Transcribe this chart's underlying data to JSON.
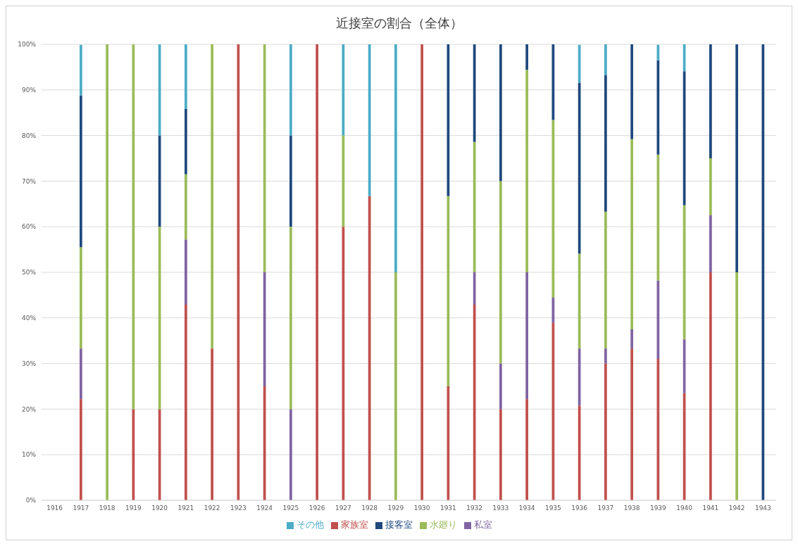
{
  "chart_data": {
    "type": "bar",
    "title": "近接室の割合（全体）",
    "stacked": true,
    "categories": [
      "1916",
      "1917",
      "1918",
      "1919",
      "1920",
      "1921",
      "1922",
      "1923",
      "1924",
      "1925",
      "1926",
      "1927",
      "1928",
      "1929",
      "1930",
      "1931",
      "1932",
      "1933",
      "1934",
      "1935",
      "1936",
      "1937",
      "1938",
      "1939",
      "1940",
      "1941",
      "1942",
      "1943"
    ],
    "series": [
      {
        "name": "家族室",
        "color": "#c0504d",
        "values": [
          null,
          22.2,
          null,
          20,
          20,
          42.9,
          33.3,
          100,
          25,
          null,
          100,
          60,
          66.7,
          null,
          100,
          25,
          42.9,
          20,
          22.2,
          38.9,
          20.8,
          30,
          33.3,
          31.0,
          23.5,
          50,
          null,
          null
        ]
      },
      {
        "name": "私室",
        "color": "#8064a2",
        "values": [
          null,
          11.1,
          null,
          null,
          null,
          14.3,
          null,
          null,
          25,
          20,
          null,
          null,
          null,
          null,
          null,
          null,
          7.1,
          10,
          27.8,
          5.6,
          12.5,
          3.3,
          4.2,
          17.2,
          11.8,
          12.5,
          null,
          null
        ]
      },
      {
        "name": "水廻り",
        "color": "#9bbb59",
        "values": [
          null,
          22.2,
          100,
          80,
          40,
          14.3,
          66.7,
          null,
          50,
          40,
          null,
          20,
          null,
          50,
          null,
          41.7,
          28.6,
          40,
          44.4,
          38.9,
          20.8,
          30,
          41.7,
          27.6,
          29.4,
          12.5,
          50,
          null
        ]
      },
      {
        "name": "接客室",
        "color": "#1f497d",
        "values": [
          null,
          33.3,
          null,
          null,
          20,
          14.3,
          null,
          null,
          null,
          20,
          null,
          null,
          null,
          null,
          null,
          33.3,
          21.4,
          30,
          5.6,
          16.7,
          37.5,
          30,
          20.8,
          20.7,
          29.4,
          25,
          50,
          100
        ]
      },
      {
        "name": "その他",
        "color": "#4bacc6",
        "values": [
          null,
          11.1,
          null,
          null,
          20,
          14.3,
          null,
          null,
          null,
          20,
          null,
          20,
          33.3,
          50,
          null,
          null,
          null,
          null,
          null,
          null,
          8.3,
          6.7,
          null,
          3.4,
          5.9,
          null,
          null,
          null
        ]
      }
    ],
    "ylim": [
      0,
      100
    ],
    "yticks": [
      {
        "value": 0,
        "label": "0%"
      },
      {
        "value": 10,
        "label": "10%"
      },
      {
        "value": 20,
        "label": "20%"
      },
      {
        "value": 30,
        "label": "30%"
      },
      {
        "value": 40,
        "label": "40%"
      },
      {
        "value": 50,
        "label": "50%"
      },
      {
        "value": 60,
        "label": "60%"
      },
      {
        "value": 70,
        "label": "70%"
      },
      {
        "value": 80,
        "label": "80%"
      },
      {
        "value": 90,
        "label": "90%"
      },
      {
        "value": 100,
        "label": "100%"
      }
    ],
    "grid": "y",
    "legend": "bottom"
  }
}
